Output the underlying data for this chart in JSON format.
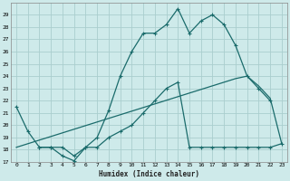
{
  "xlabel": "Humidex (Indice chaleur)",
  "bg_color": "#ceeaea",
  "grid_color": "#aacece",
  "line_color": "#1a6b6b",
  "xlim": [
    -0.5,
    23.5
  ],
  "ylim": [
    17,
    30
  ],
  "yticks": [
    17,
    18,
    19,
    20,
    21,
    22,
    23,
    24,
    25,
    26,
    27,
    28,
    29
  ],
  "xticks": [
    0,
    1,
    2,
    3,
    4,
    5,
    6,
    7,
    8,
    9,
    10,
    11,
    12,
    13,
    14,
    15,
    16,
    17,
    18,
    19,
    20,
    21,
    22,
    23
  ],
  "series1_x": [
    0,
    1,
    2,
    3,
    4,
    5,
    6,
    7,
    8,
    9,
    10,
    11,
    12,
    13,
    14,
    15,
    16,
    17,
    18,
    19,
    20,
    21,
    22
  ],
  "series1_y": [
    21.5,
    19.5,
    18.2,
    18.2,
    17.5,
    17.1,
    18.2,
    19.0,
    21.2,
    24.0,
    26.0,
    27.5,
    27.5,
    28.2,
    29.5,
    27.5,
    28.5,
    29.0,
    28.2,
    26.5,
    24.0,
    23.0,
    22.0
  ],
  "series2_x": [
    2,
    3,
    4,
    5,
    6,
    7,
    8,
    9,
    10,
    11,
    12,
    13,
    14,
    15,
    16,
    17,
    18,
    19,
    20,
    21,
    22,
    23
  ],
  "series2_y": [
    18.2,
    18.2,
    18.2,
    17.5,
    18.2,
    18.2,
    19.0,
    19.5,
    20.0,
    21.0,
    22.0,
    23.0,
    23.5,
    18.2,
    18.2,
    18.2,
    18.2,
    18.2,
    18.2,
    18.2,
    18.2,
    18.5
  ],
  "series3_x": [
    0,
    19,
    20,
    21,
    22,
    23
  ],
  "series3_y": [
    18.2,
    23.8,
    24.0,
    23.2,
    22.2,
    18.5
  ]
}
